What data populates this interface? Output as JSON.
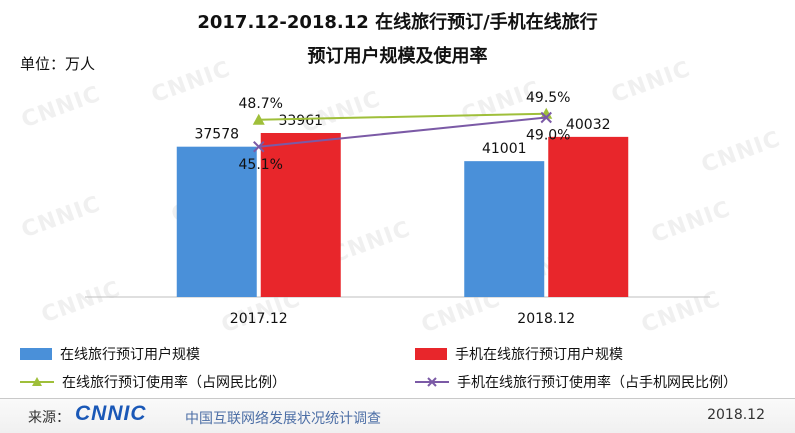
{
  "header": {
    "title_line1": "2017.12-2018.12 在线旅行预订/手机在线旅行",
    "title_line2": "预订用户规模及使用率",
    "unit": "单位：万人"
  },
  "watermark": "CNNIC",
  "chart_data": {
    "type": "bar",
    "categories": [
      "2017.12",
      "2018.12"
    ],
    "series": [
      {
        "name": "在线旅行预订用户规模",
        "type": "bar",
        "values": [
          37578,
          33961
        ],
        "color": "#4a90d9"
      },
      {
        "name": "手机在线旅行预订用户规模",
        "type": "bar",
        "values": [
          41001,
          40032
        ],
        "color": "#e8262b"
      }
    ],
    "rate_series": [
      {
        "name": "在线旅行预订使用率（占网民比例）",
        "type": "line",
        "values": [
          48.7,
          49.5
        ],
        "value_labels": [
          "48.7%",
          "49.5%"
        ],
        "color": "#9fbf3a",
        "marker": "triangle"
      },
      {
        "name": "手机在线旅行预订使用率（占手机网民比例）",
        "type": "line",
        "values": [
          45.1,
          49.0
        ],
        "value_labels": [
          "45.1%",
          "49.0%"
        ],
        "color": "#7b5aa6",
        "marker": "x"
      }
    ],
    "bar_labels": [
      [
        "37578",
        "33961"
      ],
      [
        "41001",
        "40032"
      ]
    ],
    "ylim": [
      0,
      50000
    ],
    "grid": false,
    "legend_position": "bottom"
  },
  "legend": [
    {
      "label": "在线旅行预订用户规模",
      "color": "#4a90d9",
      "kind": "bar"
    },
    {
      "label": "手机在线旅行预订用户规模",
      "color": "#e8262b",
      "kind": "bar"
    },
    {
      "label": "在线旅行预订使用率（占网民比例）",
      "color": "#9fbf3a",
      "kind": "triangle"
    },
    {
      "label": "手机在线旅行预订使用率（占手机网民比例）",
      "color": "#7b5aa6",
      "kind": "x"
    }
  ],
  "footer": {
    "source_label": "来源：",
    "logo_text": "CNNIC",
    "report_name": "中国互联网络发展状况统计调查",
    "date": "2018.12"
  }
}
